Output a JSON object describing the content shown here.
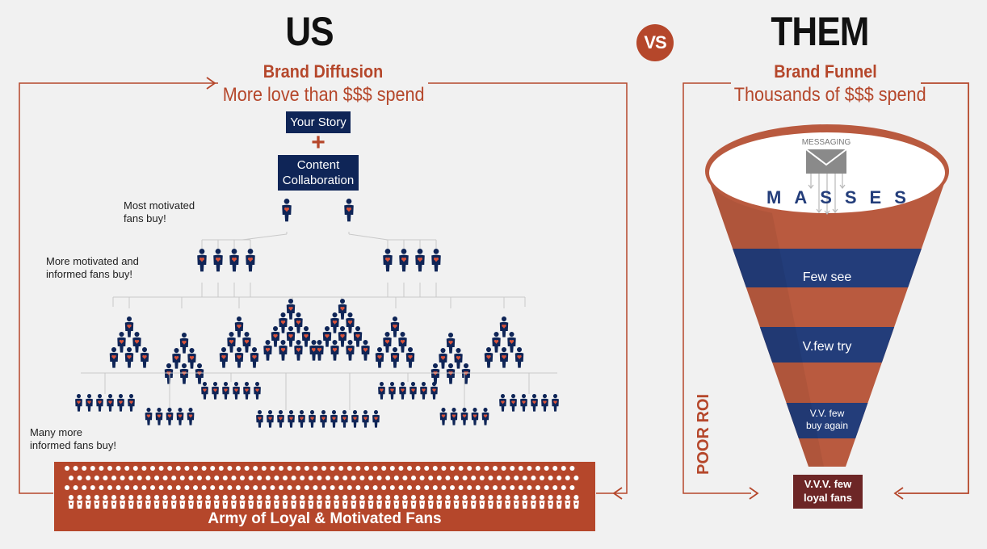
{
  "us": {
    "title": "US",
    "subtitle": "Brand Diffusion",
    "tagline": "More love than $$$ spend",
    "story_box": "Your Story",
    "plus": "+",
    "content_box_line1": "Content",
    "content_box_line2": "Collaboration",
    "note_top": [
      "Most motivated",
      "fans buy!"
    ],
    "note_mid": [
      "More motivated and",
      "informed fans buy!"
    ],
    "note_bottom": [
      "Many more",
      "informed fans buy!"
    ],
    "army_label": "Army of Loyal & Motivated Fans"
  },
  "vs_badge": "VS",
  "them": {
    "title": "THEM",
    "subtitle": "Brand Funnel",
    "tagline": "Thousands of $$$ spend",
    "messaging": "MESSAGING",
    "masses": "MASSES",
    "stage1": "Few see",
    "stage2": "V.few try",
    "stage3_line1": "V.V. few",
    "stage3_line2": "buy again",
    "result_line1": "V.V.V. few",
    "result_line2": "loyal fans",
    "roi_label": "POOR ROI"
  },
  "colors": {
    "navy": "#0f2557",
    "rust": "#b5472b",
    "funnel_orange": "#b95a3f",
    "dark_red": "#6d2626",
    "heart": "#d9533a"
  }
}
